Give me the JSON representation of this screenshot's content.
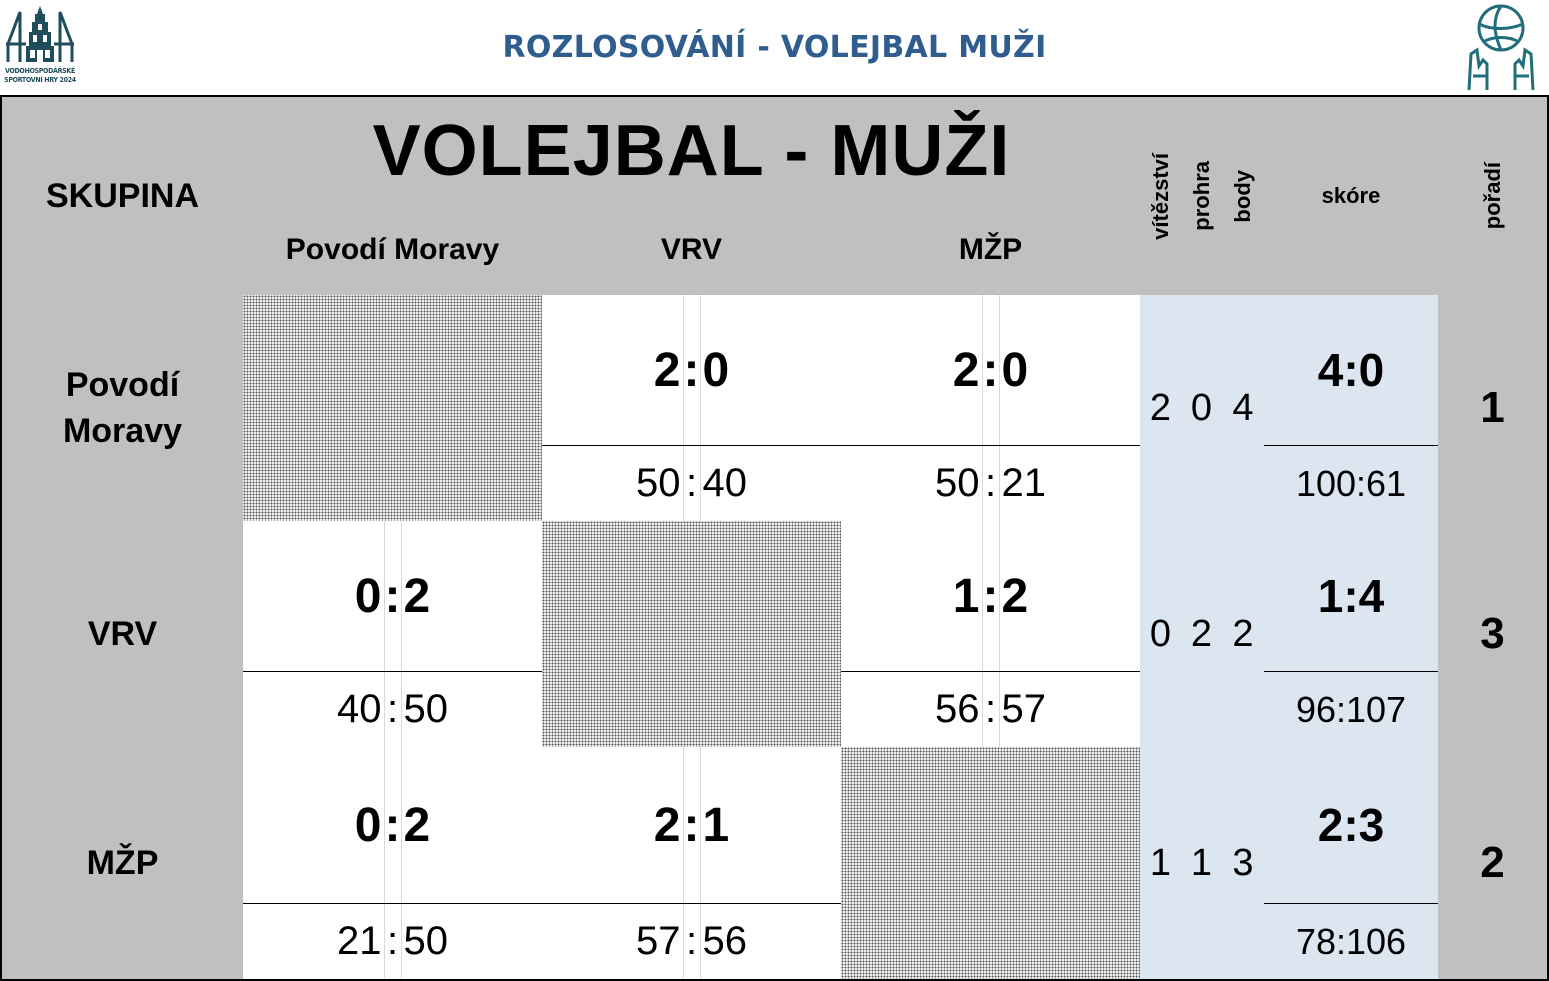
{
  "header": {
    "title": "ROZLOSOVÁNÍ - VOLEJBAL MUŽI",
    "logo_left_caption": [
      "VODOHOSPODÁŘSKÉ",
      "SPORTOVNÍ HRY 2024"
    ],
    "logo_left_icon": "tower-logo-icon",
    "logo_right_icon": "volleyball-hands-icon"
  },
  "table": {
    "group_label": "SKUPINA",
    "main_title": "VOLEJBAL - MUŽI",
    "col_headers": [
      "Povodí Moravy",
      "VRV",
      "MŽP"
    ],
    "stat_headers": {
      "wins": "vítězství",
      "losses": "prohra",
      "points": "body",
      "score": "skóre",
      "rank": "pořadí"
    },
    "rows": [
      {
        "team": "Povodí Moravy",
        "matches": [
          null,
          {
            "sets_a": "2",
            "sets_b": "0",
            "pts_a": "50",
            "pts_b": "40"
          },
          {
            "sets_a": "2",
            "sets_b": "0",
            "pts_a": "50",
            "pts_b": "21"
          }
        ],
        "wins": "2",
        "losses": "0",
        "points": "4",
        "set_score": "4:0",
        "point_score": "100:61",
        "rank": "1"
      },
      {
        "team": "VRV",
        "matches": [
          {
            "sets_a": "0",
            "sets_b": "2",
            "pts_a": "40",
            "pts_b": "50"
          },
          null,
          {
            "sets_a": "1",
            "sets_b": "2",
            "pts_a": "56",
            "pts_b": "57"
          }
        ],
        "wins": "0",
        "losses": "2",
        "points": "2",
        "set_score": "1:4",
        "point_score": "96:107",
        "rank": "3"
      },
      {
        "team": "MŽP",
        "matches": [
          {
            "sets_a": "0",
            "sets_b": "2",
            "pts_a": "21",
            "pts_b": "50"
          },
          {
            "sets_a": "2",
            "sets_b": "1",
            "pts_a": "57",
            "pts_b": "56"
          },
          null
        ],
        "wins": "1",
        "losses": "1",
        "points": "3",
        "set_score": "2:3",
        "point_score": "78:106",
        "rank": "2"
      }
    ],
    "colors": {
      "header_gray": "#c0c0c0",
      "stat_blue": "#dce6f1",
      "title_blue": "#2e5d8e",
      "logo_teal": "#1f6e7a"
    }
  }
}
